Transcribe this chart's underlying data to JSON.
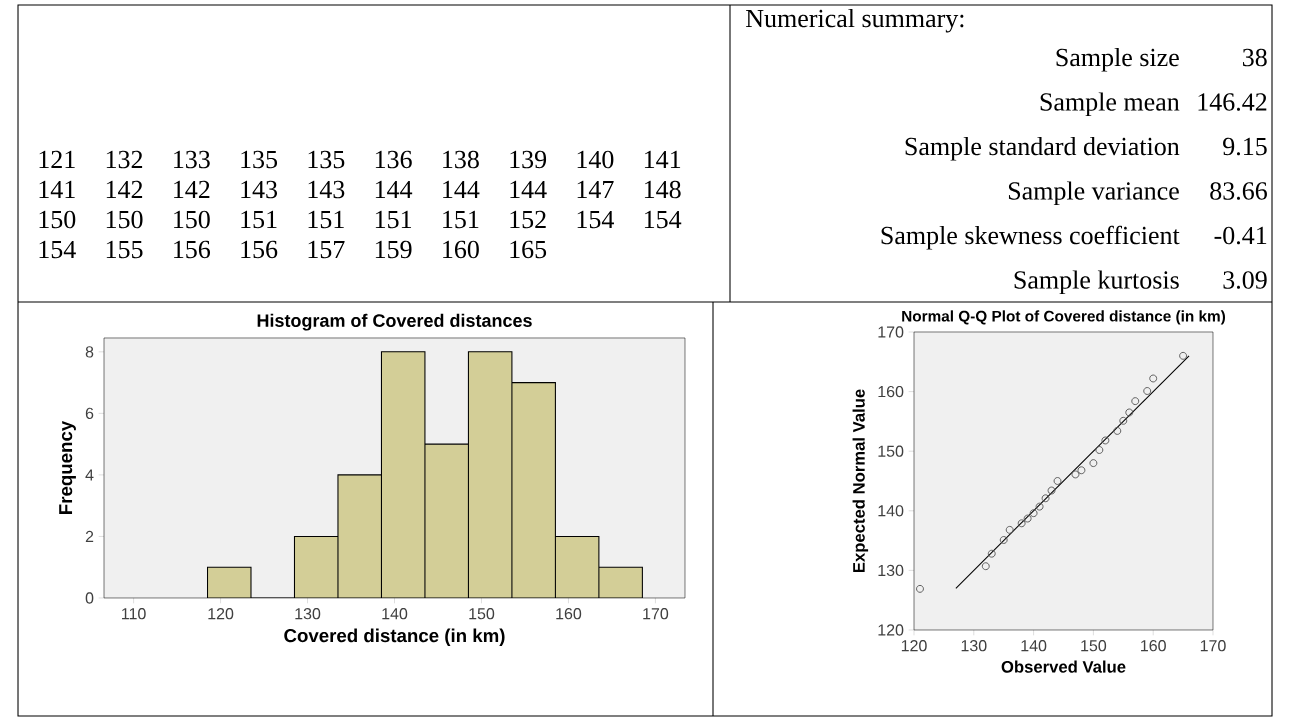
{
  "chart_data": [
    {
      "type": "other",
      "annotations": [
        "121 132 133 135 135 136 138 139 140 141",
        "141 142 142 143 143 144 144 144 147 148",
        "150 150 150 151 151 151 151 152 154 154",
        "154 155 156 156 157 159 160 165"
      ]
    },
    {
      "type": "other",
      "title": "Numerical summary:",
      "annotations": [
        "Sample size",
        "38",
        "Sample mean",
        "146.42",
        "Sample standard deviation",
        "9.15",
        "Sample variance",
        "83.66",
        "Sample skewness coefficient",
        "-0.41",
        "Sample kurtosis",
        "3.09"
      ]
    },
    {
      "type": "histogram",
      "title": "Histogram of Covered distances",
      "xlabel": "Covered distance (in km)",
      "ylabel": "Frequency",
      "bins": [
        118.5,
        123.5,
        128.5,
        133.5,
        138.5,
        143.5,
        148.5,
        153.5,
        158.5,
        163.5,
        168.5
      ],
      "values": [
        1,
        0,
        2,
        4,
        8,
        5,
        8,
        7,
        2,
        1
      ],
      "color": "#d3ce97",
      "xlim": [
        106.6,
        173.4
      ],
      "ylim": [
        0,
        8.45
      ],
      "xticks": [
        110,
        120,
        130,
        140,
        150,
        160,
        170
      ],
      "yticks": [
        0,
        2,
        4,
        6,
        8
      ]
    },
    {
      "type": "scatter",
      "title": "Normal Q-Q Plot of Covered distance (in km)",
      "xlabel": "Observed Value",
      "ylabel": "Expected Normal Value",
      "series": [
        {
          "type": "scatter",
          "color": "#555555",
          "marker": "circle",
          "x": [
            121,
            132,
            133,
            135,
            136,
            138,
            139,
            140,
            141,
            142,
            143,
            144,
            147,
            148,
            150,
            151,
            152,
            154,
            155,
            156,
            157,
            159,
            160,
            165
          ],
          "values": [
            126.9,
            130.7,
            132.8,
            135.1,
            136.8,
            137.9,
            138.7,
            139.6,
            140.7,
            142.1,
            143.4,
            145.0,
            146.1,
            146.8,
            148.0,
            150.2,
            151.8,
            153.4,
            155.1,
            156.5,
            158.4,
            160.1,
            162.2,
            166.0
          ]
        },
        {
          "type": "line",
          "color": "#000000",
          "x": [
            127,
            166
          ],
          "values": [
            127,
            166
          ]
        }
      ],
      "xlim": [
        120,
        170
      ],
      "ylim": [
        120,
        170
      ],
      "xticks": [
        120,
        130,
        140,
        150,
        160,
        170
      ],
      "yticks": [
        120,
        130,
        140,
        150,
        160,
        170
      ]
    }
  ]
}
